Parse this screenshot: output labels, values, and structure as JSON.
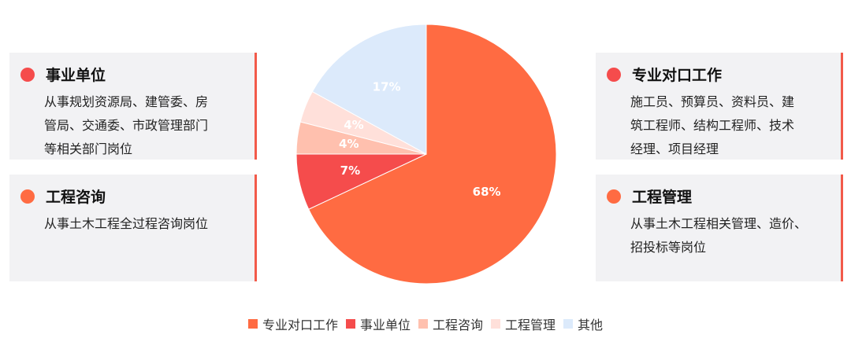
{
  "chart_data": {
    "type": "pie",
    "categories": [
      "专业对口工作",
      "事业单位",
      "工程咨询",
      "工程管理",
      "其他"
    ],
    "values": [
      68,
      7,
      4,
      4,
      17
    ],
    "labels": [
      "68%",
      "7%",
      "4%",
      "4%",
      "17%"
    ],
    "colors": [
      "#ff6b42",
      "#f54c4c",
      "#ffc0ae",
      "#ffe0da",
      "#dceafb"
    ],
    "legend": "bottom"
  },
  "cards": {
    "left1": {
      "title": "事业单位",
      "dot_color": "#f54c4c",
      "lines": [
        "从事规划资源局、建管委、房",
        "管局、交通委、市政管理部门",
        "等相关部门岗位"
      ]
    },
    "left2": {
      "title": "工程咨询",
      "dot_color": "#ff6b42",
      "lines": [
        "从事土木工程全过程咨询岗位"
      ]
    },
    "right1": {
      "title": "专业对口工作",
      "dot_color": "#f54c4c",
      "lines": [
        "施工员、预算员、资料员、建",
        "筑工程师、结构工程师、技术",
        "经理、项目经理"
      ]
    },
    "right2": {
      "title": "工程管理",
      "dot_color": "#ff6b42",
      "lines": [
        "从事土木工程相关管理、造价、",
        "招投标等岗位"
      ]
    }
  },
  "legend": {
    "items": [
      "专业对口工作",
      "事业单位",
      "工程咨询",
      "工程管理",
      "其他"
    ]
  }
}
